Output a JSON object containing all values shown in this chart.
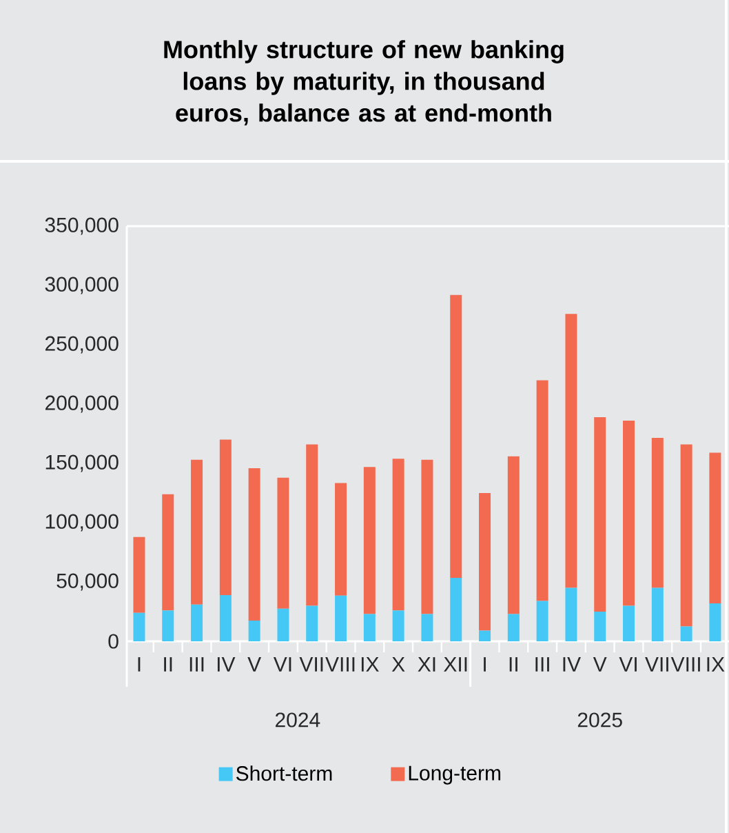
{
  "chart_data": {
    "type": "bar",
    "stacked": true,
    "title": "Monthly structure of new banking loans by maturity, in thousand euros, balance as at end-month",
    "categories": [
      "I",
      "II",
      "III",
      "IV",
      "V",
      "VI",
      "VII",
      "VIII",
      "IX",
      "X",
      "XI",
      "XII",
      "I",
      "II",
      "III",
      "IV",
      "V",
      "VI",
      "VII",
      "VIII",
      "IX"
    ],
    "series": [
      {
        "name": "Short-term",
        "color": "#45c8f5",
        "values": [
          24000,
          26000,
          31000,
          39000,
          17500,
          27500,
          30000,
          38500,
          23000,
          26000,
          23000,
          53500,
          9000,
          23000,
          34000,
          45000,
          25000,
          30000,
          45000,
          12500,
          32000
        ]
      },
      {
        "name": "Long-term",
        "color": "#f26a4f",
        "values": [
          64000,
          98000,
          122000,
          131000,
          128500,
          110500,
          136000,
          95000,
          124000,
          128000,
          130000,
          238500,
          116000,
          133000,
          186000,
          231000,
          164000,
          156000,
          126500,
          153500,
          127000
        ]
      }
    ],
    "ylim": [
      0,
      350000
    ],
    "yticks": [
      {
        "value": 0,
        "label": "0"
      },
      {
        "value": 50000,
        "label": "50,000"
      },
      {
        "value": 100000,
        "label": "100,000"
      },
      {
        "value": 150000,
        "label": "150,000"
      },
      {
        "value": 200000,
        "label": "200,000"
      },
      {
        "value": 250000,
        "label": "250,000"
      },
      {
        "value": 300000,
        "label": "300,000"
      },
      {
        "value": 350000,
        "label": "350,000"
      }
    ],
    "annotations": [
      "2024",
      "2025"
    ],
    "legend": "bottom",
    "grid": false
  }
}
